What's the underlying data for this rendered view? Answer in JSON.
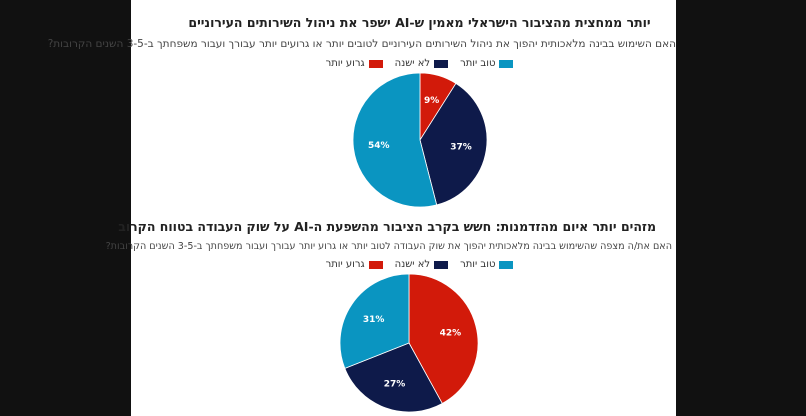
{
  "colors": {
    "better": "#0a95c1",
    "no_change": "#0e1a4a",
    "worse": "#d21a0a"
  },
  "chart_data": [
    {
      "type": "pie",
      "title": "יותר ממחצית מהציבור הישראלי מאמין ש-AI ישפר את ניהול השירותים העירוניים",
      "subtitle": "האם השימוש בבינה מלאכותית יהפוך את ניהול השירותים העירוניים לטובים יותר או גרועים יותר עבורך ועבור משפחתך ב-3-5 השנים הקרובות?",
      "legend": [
        "טוב יותר",
        "לא ישנה",
        "גרוע יותר"
      ],
      "slices": [
        {
          "label": "גרוע יותר",
          "value": 9,
          "text": "9%"
        },
        {
          "label": "לא ישנה",
          "value": 37,
          "text": "37%"
        },
        {
          "label": "טוב יותר",
          "value": 54,
          "text": "54%"
        }
      ]
    },
    {
      "type": "pie",
      "title": "מזהים יותר איום מהזדמנות: חשש בקרב הציבור מהשפעת ה-AI על שוק העבודה בטווח הקרוב",
      "subtitle": "האם את/ה מצפה שהשימוש בבינה מלאכותית יהפוך את שוק העבודה לטוב יותר או גרוע יותר עבורך ועבור משפחתך ב-3-5 השנים הקרובות?",
      "legend": [
        "טוב יותר",
        "לא ישנה",
        "גרוע יותר"
      ],
      "slices": [
        {
          "label": "גרוע יותר",
          "value": 42,
          "text": "42%"
        },
        {
          "label": "לא ישנה",
          "value": 27,
          "text": "27%"
        },
        {
          "label": "טוב יותר",
          "value": 31,
          "text": "31%"
        }
      ]
    }
  ]
}
